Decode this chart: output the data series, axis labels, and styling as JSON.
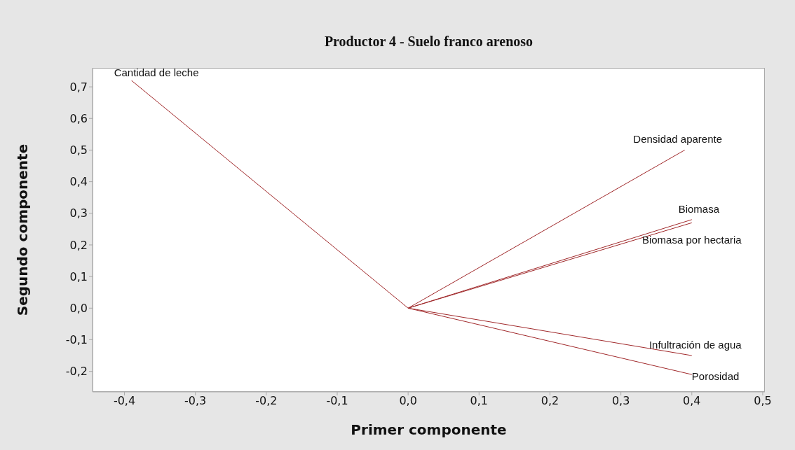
{
  "chart_data": {
    "type": "line",
    "title": "Productor 4 - Suelo franco arenoso",
    "xlabel": "Primer componente",
    "ylabel": "Segundo componente",
    "xlim": [
      -0.445,
      0.503
    ],
    "ylim": [
      -0.265,
      0.76
    ],
    "xticks": [
      {
        "value": -0.4,
        "label": "-0,4"
      },
      {
        "value": -0.3,
        "label": "-0,3"
      },
      {
        "value": -0.2,
        "label": "-0,2"
      },
      {
        "value": -0.1,
        "label": "-0,1"
      },
      {
        "value": 0,
        "label": "0,0"
      },
      {
        "value": 0.1,
        "label": "0,1"
      },
      {
        "value": 0.2,
        "label": "0,2"
      },
      {
        "value": 0.3,
        "label": "0,3"
      },
      {
        "value": 0.4,
        "label": "0,4"
      },
      {
        "value": 0.5,
        "label": "0,5"
      }
    ],
    "yticks": [
      {
        "value": -0.2,
        "label": "-0,2"
      },
      {
        "value": -0.1,
        "label": "-0,1"
      },
      {
        "value": 0,
        "label": "0,0"
      },
      {
        "value": 0.1,
        "label": "0,1"
      },
      {
        "value": 0.2,
        "label": "0,2"
      },
      {
        "value": 0.3,
        "label": "0,3"
      },
      {
        "value": 0.4,
        "label": "0,4"
      },
      {
        "value": 0.5,
        "label": "0,5"
      },
      {
        "value": 0.6,
        "label": "0,6"
      },
      {
        "value": 0.7,
        "label": "0,7"
      }
    ],
    "grid": false,
    "legend": false,
    "marker": "none",
    "line_style": "solid",
    "series": [
      {
        "name": "Cantidad de leche",
        "color": "#a0282a",
        "x": [
          0,
          -0.39
        ],
        "values": [
          0,
          0.72
        ]
      },
      {
        "name": "Densidad aparente",
        "color": "#a0282a",
        "x": [
          0,
          0.39
        ],
        "values": [
          0,
          0.5
        ]
      },
      {
        "name": "Biomasa",
        "color": "#a0282a",
        "x": [
          0,
          0.4
        ],
        "values": [
          0,
          0.28
        ]
      },
      {
        "name": "Biomasa por hectaria",
        "color": "#a0282a",
        "x": [
          0,
          0.4
        ],
        "values": [
          0,
          0.27
        ]
      },
      {
        "name": "Infultración de agua",
        "color": "#a0282a",
        "x": [
          0,
          0.4
        ],
        "values": [
          0,
          -0.15
        ]
      },
      {
        "name": "Porosidad",
        "color": "#a0282a",
        "x": [
          0,
          0.4
        ],
        "values": [
          0,
          -0.21
        ]
      }
    ]
  }
}
